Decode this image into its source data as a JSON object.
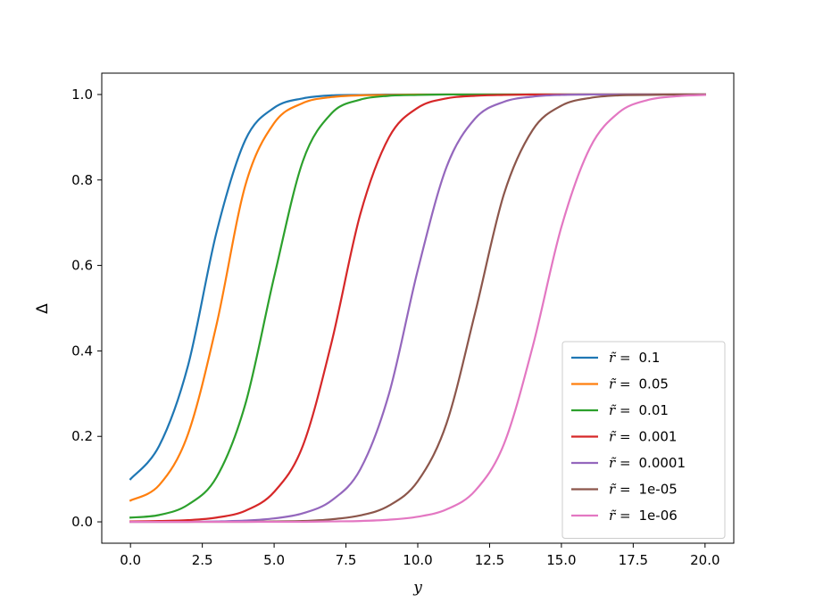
{
  "chart_data": {
    "type": "line",
    "xlabel": "y",
    "ylabel": "Δ",
    "xlim": [
      -1.0,
      21.0
    ],
    "ylim": [
      -0.05,
      1.05
    ],
    "xticks": [
      0.0,
      2.5,
      5.0,
      7.5,
      10.0,
      12.5,
      15.0,
      17.5,
      20.0
    ],
    "xtick_labels": [
      "0.0",
      "2.5",
      "5.0",
      "7.5",
      "10.0",
      "12.5",
      "15.0",
      "17.5",
      "20.0"
    ],
    "yticks": [
      0.0,
      0.2,
      0.4,
      0.6,
      0.8,
      1.0
    ],
    "ytick_labels": [
      "0.0",
      "0.2",
      "0.4",
      "0.6",
      "0.8",
      "1.0"
    ],
    "grid": false,
    "legend_position": "lower-right",
    "legend_prefix": "r̃ =",
    "x": [
      0,
      1,
      2,
      3,
      4,
      5,
      6,
      7,
      8,
      9,
      10,
      11,
      12,
      13,
      14,
      15,
      16,
      17,
      18,
      19,
      20
    ],
    "series": [
      {
        "name": "0.1",
        "color": "#1f77b4",
        "values": [
          0.1,
          0.178,
          0.365,
          0.679,
          0.894,
          0.969,
          0.991,
          0.998,
          0.999,
          1.0,
          1.0,
          1.0,
          1.0,
          1.0,
          1.0,
          1.0,
          1.0,
          1.0,
          1.0,
          1.0,
          1.0
        ]
      },
      {
        "name": "0.05",
        "color": "#ff7f0e",
        "values": [
          0.05,
          0.086,
          0.205,
          0.463,
          0.788,
          0.933,
          0.98,
          0.994,
          0.998,
          0.999,
          1.0,
          1.0,
          1.0,
          1.0,
          1.0,
          1.0,
          1.0,
          1.0,
          1.0,
          1.0,
          1.0
        ]
      },
      {
        "name": "0.01",
        "color": "#2ca02c",
        "values": [
          0.01,
          0.016,
          0.04,
          0.105,
          0.276,
          0.573,
          0.844,
          0.956,
          0.988,
          0.997,
          0.999,
          1.0,
          1.0,
          1.0,
          1.0,
          1.0,
          1.0,
          1.0,
          1.0,
          1.0,
          1.0
        ]
      },
      {
        "name": "0.001",
        "color": "#d62728",
        "values": [
          0.001,
          0.002,
          0.004,
          0.01,
          0.026,
          0.07,
          0.178,
          0.42,
          0.72,
          0.9,
          0.969,
          0.991,
          0.997,
          0.999,
          1.0,
          1.0,
          1.0,
          1.0,
          1.0,
          1.0,
          1.0
        ]
      },
      {
        "name": "0.0001",
        "color": "#9467bd",
        "values": [
          0.0,
          0.0,
          0.0,
          0.001,
          0.003,
          0.008,
          0.02,
          0.05,
          0.123,
          0.3,
          0.589,
          0.83,
          0.944,
          0.983,
          0.995,
          0.999,
          1.0,
          1.0,
          1.0,
          1.0,
          1.0
        ]
      },
      {
        "name": "1e-05",
        "color": "#8c564b",
        "values": [
          0.0,
          0.0,
          0.0,
          0.0,
          0.0,
          0.001,
          0.002,
          0.006,
          0.015,
          0.038,
          0.095,
          0.23,
          0.49,
          0.767,
          0.917,
          0.974,
          0.992,
          0.998,
          0.999,
          1.0,
          1.0
        ]
      },
      {
        "name": "1e-06",
        "color": "#e377c2",
        "values": [
          0.0,
          0.0,
          0.0,
          0.0,
          0.0,
          0.0,
          0.0,
          0.001,
          0.002,
          0.005,
          0.012,
          0.029,
          0.073,
          0.182,
          0.41,
          0.69,
          0.876,
          0.958,
          0.987,
          0.996,
          0.999
        ]
      }
    ]
  }
}
